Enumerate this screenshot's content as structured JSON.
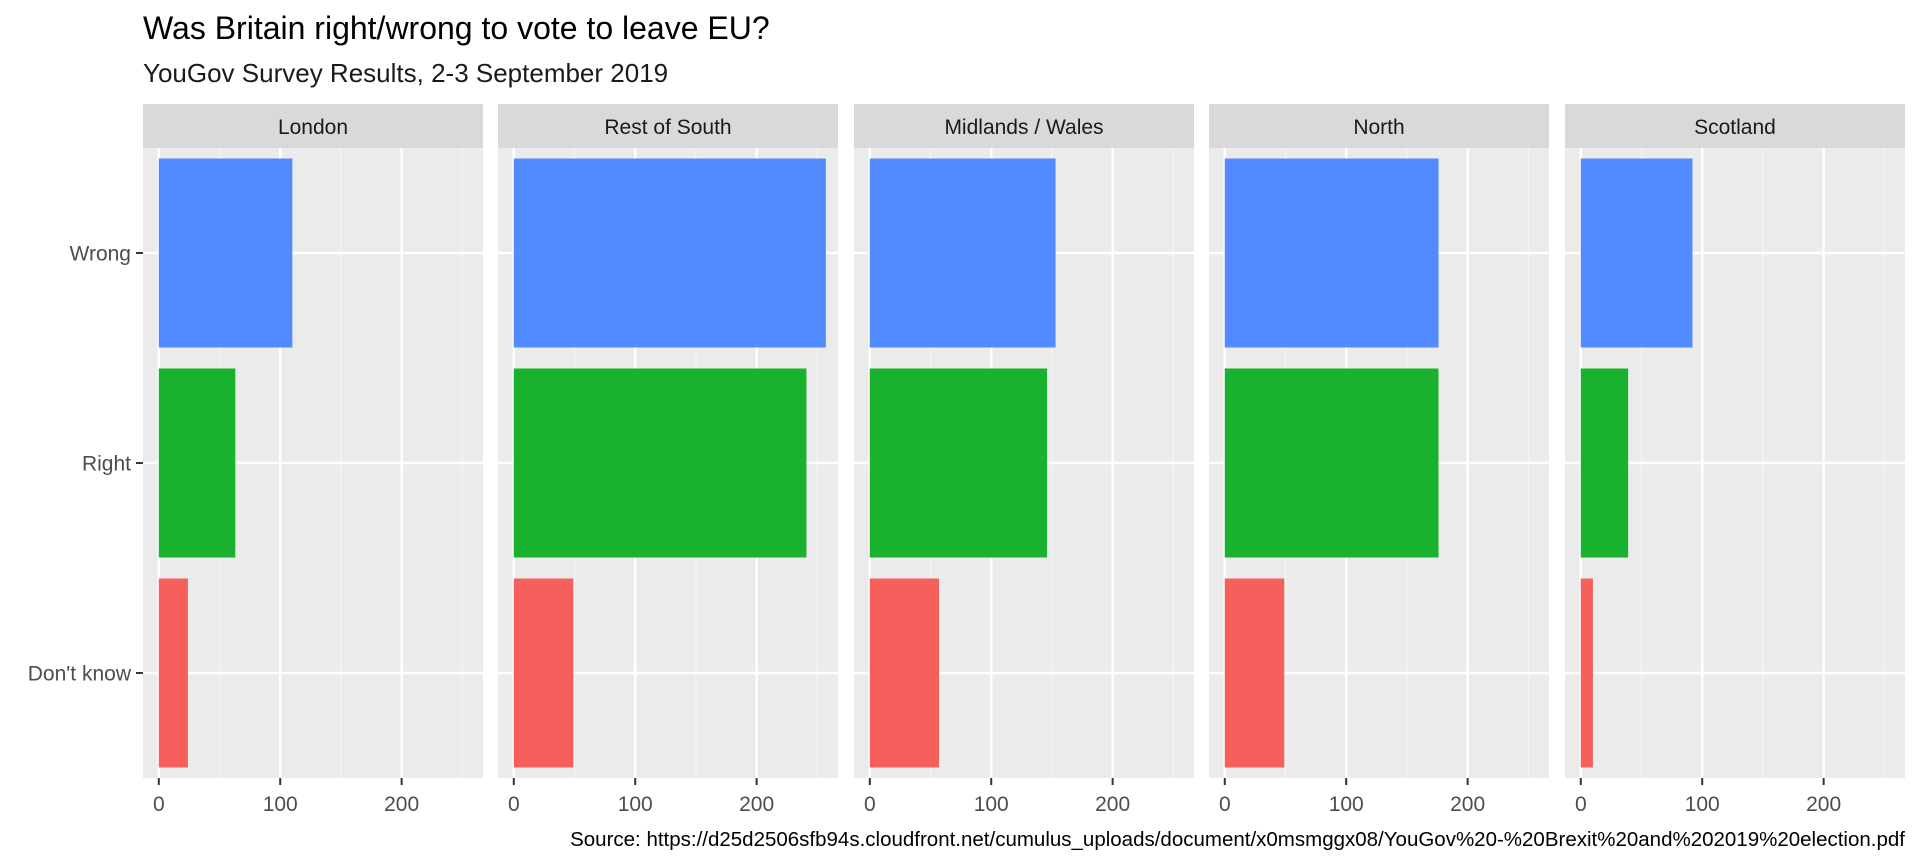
{
  "chart_data": {
    "type": "bar",
    "orientation": "horizontal",
    "title": "Was Britain right/wrong to vote to leave EU?",
    "subtitle": "YouGov Survey Results, 2-3 September 2019",
    "caption": "Source: https://d25d2506sfb94s.cloudfront.net/cumulus_uploads/document/x0msmggx08/YouGov%20-%20Brexit%20and%202019%20election.pdf",
    "categories": [
      "Wrong",
      "Right",
      "Don't know"
    ],
    "category_colors": [
      "#528AFF",
      "#19B22E",
      "#F5605C"
    ],
    "xlim": [
      -13,
      267
    ],
    "xticks": [
      0,
      100,
      200
    ],
    "x_minor": [
      50,
      150,
      250
    ],
    "panels": [
      {
        "label": "London",
        "values": [
          110,
          63,
          24
        ]
      },
      {
        "label": "Rest of South",
        "values": [
          257,
          241,
          49
        ]
      },
      {
        "label": "Midlands / Wales",
        "values": [
          153,
          146,
          57
        ]
      },
      {
        "label": "North",
        "values": [
          176,
          176,
          49
        ]
      },
      {
        "label": "Scotland",
        "values": [
          92,
          39,
          10
        ]
      }
    ]
  }
}
